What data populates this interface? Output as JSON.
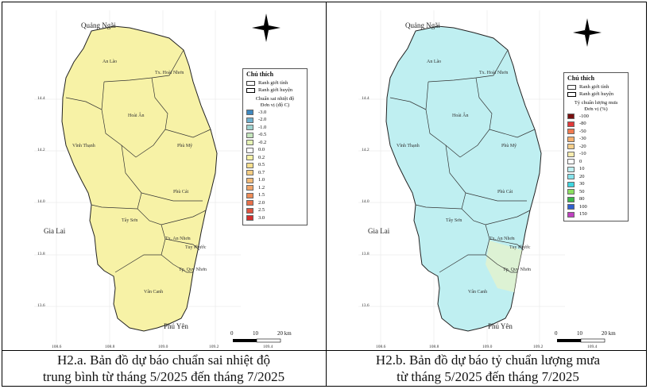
{
  "maps": [
    {
      "legend_title": "Chú thích",
      "boundary_province": "Ranh giới tỉnh",
      "boundary_district": "Ranh giới huyện",
      "variable_title": "Chuẩn sai nhiệt độ",
      "unit": "Đơn vị (độ C)",
      "fill_color": "#f7f2a6",
      "classes": [
        {
          "value": "-3.0",
          "color": "#3f88bf"
        },
        {
          "value": "-2.0",
          "color": "#6fb1cf"
        },
        {
          "value": "-1.0",
          "color": "#9fd3cf"
        },
        {
          "value": "-0.5",
          "color": "#c5e6bd"
        },
        {
          "value": "-0.2",
          "color": "#e6f3b4"
        },
        {
          "value": "0.0",
          "color": "#ffffff"
        },
        {
          "value": "0.2",
          "color": "#f7f2a6"
        },
        {
          "value": "0.5",
          "color": "#f7df8e"
        },
        {
          "value": "0.7",
          "color": "#f5cd82"
        },
        {
          "value": "1.0",
          "color": "#f3bb78"
        },
        {
          "value": "1.2",
          "color": "#f1a56a"
        },
        {
          "value": "1.5",
          "color": "#ee8c58"
        },
        {
          "value": "2.0",
          "color": "#e8704a"
        },
        {
          "value": "2.5",
          "color": "#e05440"
        },
        {
          "value": "3.0",
          "color": "#d4302f"
        }
      ],
      "caption_line1": "H2.a. Bản đồ dự báo chuẩn sai nhiệt độ",
      "caption_line2": "trung bình từ tháng 5/2025 đến tháng 7/2025"
    },
    {
      "legend_title": "Chú thích",
      "boundary_province": "Ranh giới tỉnh",
      "boundary_district": "Ranh giới huyện",
      "variable_title": "Tỷ chuẩn lượng mưa",
      "unit": "Đơn vị (%)",
      "fill_color": "#bfeff1",
      "classes": [
        {
          "value": "-100",
          "color": "#7a1010"
        },
        {
          "value": "-80",
          "color": "#e03a3a"
        },
        {
          "value": "-50",
          "color": "#f07a50"
        },
        {
          "value": "-30",
          "color": "#f5b070"
        },
        {
          "value": "-20",
          "color": "#f6cf8a"
        },
        {
          "value": "-10",
          "color": "#f7ecb0"
        },
        {
          "value": "0",
          "color": "#ffffff"
        },
        {
          "value": "10",
          "color": "#bfeff1"
        },
        {
          "value": "20",
          "color": "#86e3ec"
        },
        {
          "value": "30",
          "color": "#3fd6e0"
        },
        {
          "value": "50",
          "color": "#8ce060"
        },
        {
          "value": "80",
          "color": "#3cb94a"
        },
        {
          "value": "100",
          "color": "#3060d0"
        },
        {
          "value": "150",
          "color": "#c040c0"
        }
      ],
      "caption_line1": "H2.b. Bản đồ dự báo tỷ chuẩn lượng mưa",
      "caption_line2": "từ tháng 5/2025 đến tháng 7/2025"
    }
  ],
  "places": {
    "quang_ngai": "Quảng Ngãi",
    "gia_lai": "Gia Lai",
    "phu_yen": "Phú Yên",
    "an_lao": "An Lão",
    "hoai_nhon": "Tx. Hoài Nhơn",
    "hoai_an": "Hoài Ân",
    "vinh_thanh": "Vĩnh Thạnh",
    "phu_my": "Phù Mỹ",
    "phu_cat": "Phù Cát",
    "tay_son": "Tây Sơn",
    "an_nhon": "Tx. An Nhơn",
    "tuy_phuoc": "Tuy Phước",
    "quy_nhon": "Tp. Quy Nhơn",
    "van_canh": "Vân Canh"
  },
  "lat_ticks": [
    "14.4",
    "14.2",
    "14.0",
    "13.8",
    "13.6"
  ],
  "lon_ticks": [
    "108.6",
    "108.8",
    "109.0",
    "109.2",
    "109.4"
  ],
  "scale": {
    "s0": "0",
    "s1": "10",
    "s2": "20 km"
  }
}
